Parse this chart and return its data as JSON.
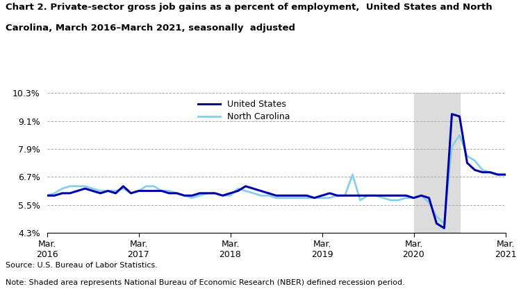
{
  "title_line1": "Chart 2. Private-sector gross job gains as a percent of employment,  United States and North",
  "title_line2": "Carolina, March 2016–March 2021, seasonally  adjusted",
  "source": "Source: U.S. Bureau of Labor Statistics.",
  "note": "Note: Shaded area represents National Bureau of Economic Research (NBER) defined recession period.",
  "legend_us": "United States",
  "legend_nc": "North Carolina",
  "us_color": "#0000AA",
  "nc_color": "#87CEEB",
  "recession_color": "#DCDCDC",
  "recession_start": 48,
  "recession_end": 54,
  "ylim": [
    4.3,
    10.3
  ],
  "yticks": [
    4.3,
    5.5,
    6.7,
    7.9,
    9.1,
    10.3
  ],
  "ytick_labels": [
    "4.3%",
    "5.5%",
    "6.7%",
    "7.9%",
    "9.1%",
    "10.3%"
  ],
  "n_points": 61,
  "xtick_positions": [
    0,
    12,
    24,
    36,
    48,
    60
  ],
  "xtick_labels": [
    "Mar.\n2016",
    "Mar.\n2017",
    "Mar.\n2018",
    "Mar.\n2019",
    "Mar.\n2020",
    "Mar.\n2021"
  ],
  "us_data": [
    5.9,
    5.9,
    6.0,
    6.0,
    6.1,
    6.2,
    6.1,
    6.0,
    6.1,
    6.0,
    6.3,
    6.0,
    6.1,
    6.1,
    6.1,
    6.1,
    6.0,
    6.0,
    5.9,
    5.9,
    6.0,
    6.0,
    6.0,
    5.9,
    6.0,
    6.1,
    6.3,
    6.2,
    6.1,
    6.0,
    5.9,
    5.9,
    5.9,
    5.9,
    5.9,
    5.8,
    5.9,
    6.0,
    5.9,
    5.9,
    5.9,
    5.9,
    5.9,
    5.9,
    5.9,
    5.9,
    5.9,
    5.9,
    5.8,
    5.9,
    5.8,
    4.7,
    4.5,
    9.4,
    9.3,
    7.3,
    7.0,
    6.9,
    6.9,
    6.8,
    6.8
  ],
  "nc_data": [
    5.9,
    6.0,
    6.2,
    6.3,
    6.3,
    6.3,
    6.2,
    6.1,
    6.1,
    6.1,
    6.2,
    6.0,
    6.1,
    6.3,
    6.3,
    6.1,
    6.1,
    6.0,
    5.9,
    5.8,
    5.9,
    6.0,
    6.0,
    5.9,
    5.9,
    6.2,
    6.1,
    6.0,
    5.9,
    5.9,
    5.8,
    5.8,
    5.8,
    5.8,
    5.8,
    5.8,
    5.8,
    5.8,
    5.9,
    5.9,
    6.8,
    5.7,
    5.9,
    5.9,
    5.8,
    5.7,
    5.7,
    5.8,
    5.8,
    5.9,
    5.6,
    5.0,
    4.7,
    8.0,
    8.5,
    7.6,
    7.4,
    7.0,
    6.9,
    6.8,
    6.8
  ]
}
